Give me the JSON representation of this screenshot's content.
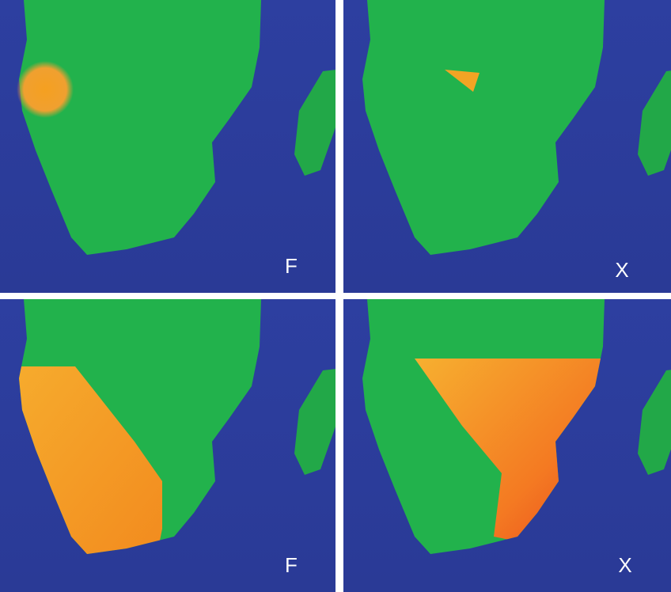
{
  "panels": [
    {
      "label": "F"
    },
    {
      "label": "X"
    },
    {
      "label": "F"
    },
    {
      "label": "X"
    }
  ]
}
